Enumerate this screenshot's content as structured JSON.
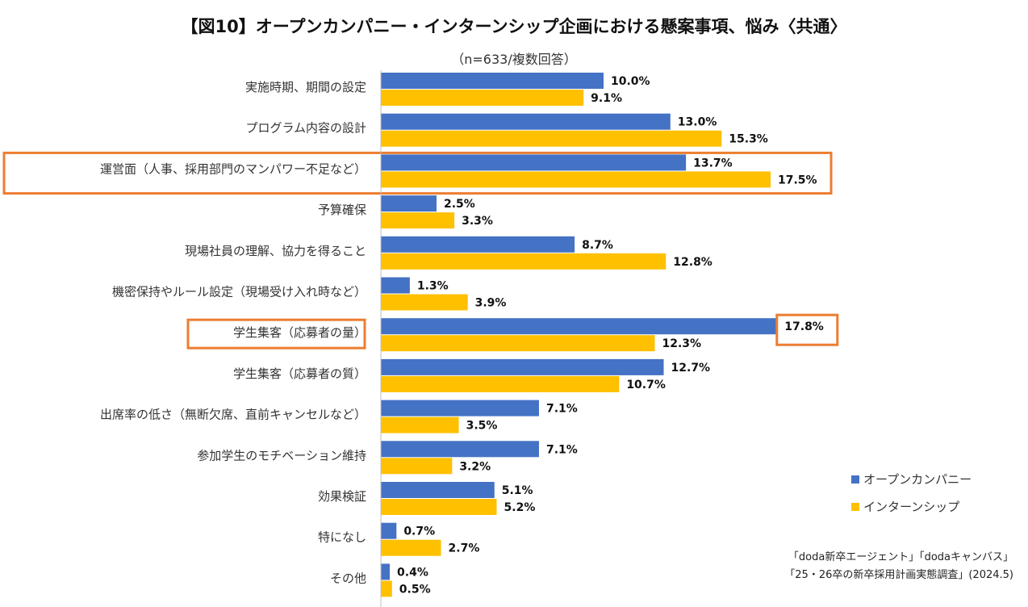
{
  "chart_data": {
    "type": "bar",
    "orientation": "horizontal",
    "title": "【図10】オープンカンパニー・インターンシップ企画における懸案事項、悩み〈共通〉",
    "subtitle": "（n=633/複数回答）",
    "categories": [
      "実施時期、期間の設定",
      "プログラム内容の設計",
      "運営面（人事、採用部門のマンパワー不足など）",
      "予算確保",
      "現場社員の理解、協力を得ること",
      "機密保持やルール設定（現場受け入れ時など）",
      "学生集客（応募者の量）",
      "学生集客（応募者の質）",
      "出席率の低さ（無断欠席、直前キャンセルなど）",
      "参加学生のモチベーション維持",
      "効果検証",
      "特になし",
      "その他"
    ],
    "series": [
      {
        "name": "オープンカンパニー",
        "color": "#4472C4",
        "values": [
          10.0,
          13.0,
          13.7,
          2.5,
          8.7,
          1.3,
          17.8,
          12.7,
          7.1,
          7.1,
          5.1,
          0.7,
          0.4
        ],
        "labels": [
          "10.0%",
          "13.0%",
          "13.7%",
          "2.5%",
          "8.7%",
          "1.3%",
          "17.8%",
          "12.7%",
          "7.1%",
          "7.1%",
          "5.1%",
          "0.7%",
          "0.4%"
        ]
      },
      {
        "name": "インターンシップ",
        "color": "#FFC000",
        "values": [
          9.1,
          15.3,
          17.5,
          3.3,
          12.8,
          3.9,
          12.3,
          10.7,
          3.5,
          3.2,
          5.2,
          2.7,
          0.5
        ],
        "labels": [
          "9.1%",
          "15.3%",
          "17.5%",
          "3.3%",
          "12.8%",
          "3.9%",
          "12.3%",
          "10.7%",
          "3.5%",
          "3.2%",
          "5.2%",
          "2.7%",
          "0.5%"
        ]
      }
    ],
    "xlim": [
      0,
      20
    ],
    "grid": false,
    "legend_position": "bottom-right",
    "highlight": {
      "color": "#ED7D31",
      "categories": [
        2,
        6
      ],
      "label": {
        "category": 6,
        "series": 0
      }
    },
    "source": [
      "「doda新卒エージェント」「dodaキャンバス」",
      "「25・26卒の新卒採用計画実態調査」(2024.5)"
    ]
  }
}
